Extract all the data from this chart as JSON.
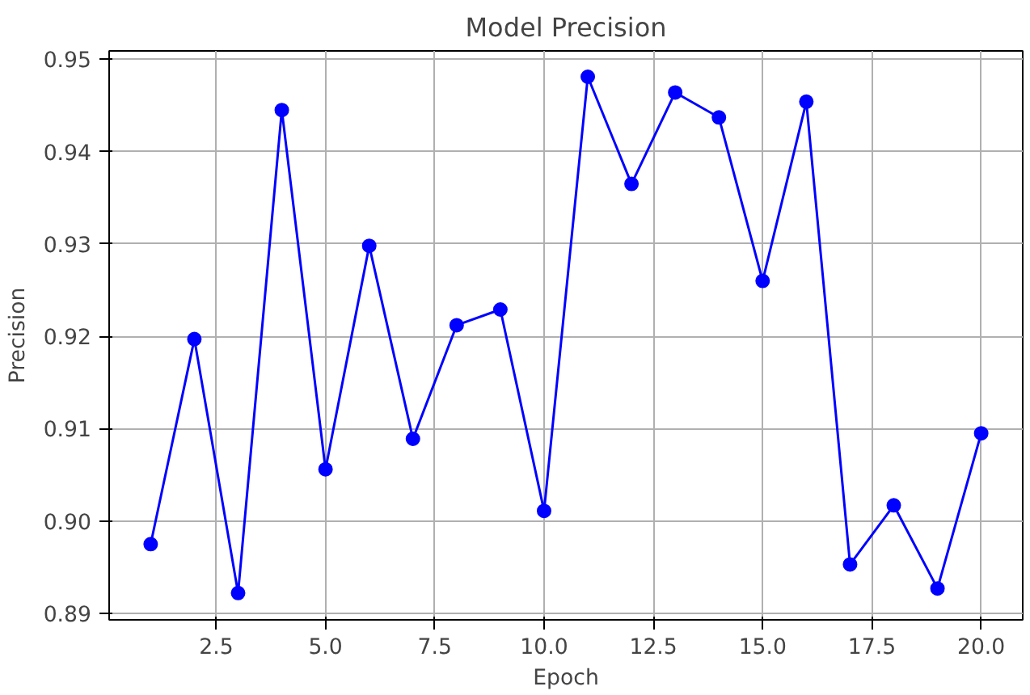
{
  "chart_data": {
    "type": "line",
    "title": "Model Precision",
    "xlabel": "Epoch",
    "ylabel": "Precision",
    "x": [
      1,
      2,
      3,
      4,
      5,
      6,
      7,
      8,
      9,
      10,
      11,
      12,
      13,
      14,
      15,
      16,
      17,
      18,
      19,
      20
    ],
    "series": [
      {
        "color": "#0000ff",
        "values": [
          0.8975,
          0.9197,
          0.8922,
          0.9445,
          0.9056,
          0.9298,
          0.9089,
          0.9212,
          0.9229,
          0.9011,
          0.9481,
          0.9365,
          0.9464,
          0.9437,
          0.926,
          0.9454,
          0.8953,
          0.9017,
          0.8927,
          0.9095
        ]
      }
    ],
    "xlim": [
      0.05,
      20.95
    ],
    "ylim": [
      0.8893,
      0.9509
    ],
    "xticks": [
      {
        "value": 2.5,
        "label": "2.5"
      },
      {
        "value": 5,
        "label": "5.0"
      },
      {
        "value": 7.5,
        "label": "7.5"
      },
      {
        "value": 10,
        "label": "10.0"
      },
      {
        "value": 12.5,
        "label": "12.5"
      },
      {
        "value": 15,
        "label": "15.0"
      },
      {
        "value": 17.5,
        "label": "17.5"
      },
      {
        "value": 20,
        "label": "20.0"
      }
    ],
    "yticks": [
      {
        "value": 0.89,
        "label": "0.89"
      },
      {
        "value": 0.9,
        "label": "0.90"
      },
      {
        "value": 0.91,
        "label": "0.91"
      },
      {
        "value": 0.92,
        "label": "0.92"
      },
      {
        "value": 0.93,
        "label": "0.93"
      },
      {
        "value": 0.94,
        "label": "0.94"
      },
      {
        "value": 0.95,
        "label": "0.95"
      }
    ],
    "grid": true,
    "marker": "circle",
    "line_style": "solid"
  }
}
